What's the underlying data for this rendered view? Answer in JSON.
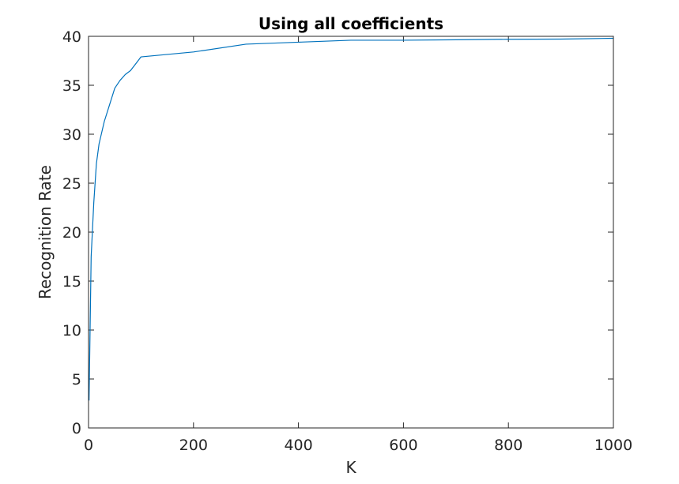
{
  "chart_data": {
    "type": "line",
    "title": "Using all coefficients",
    "xlabel": "K",
    "ylabel": "Recognition Rate",
    "xlim": [
      0,
      1000
    ],
    "ylim": [
      0,
      40
    ],
    "xticks": [
      0,
      200,
      400,
      600,
      800,
      1000
    ],
    "yticks": [
      0,
      5,
      10,
      15,
      20,
      25,
      30,
      35,
      40
    ],
    "grid": false,
    "series": [
      {
        "color": "#0072BD",
        "x": [
          1,
          5,
          10,
          15,
          20,
          30,
          40,
          50,
          60,
          70,
          80,
          90,
          100,
          200,
          300,
          400,
          500,
          600,
          700,
          800,
          900,
          1000
        ],
        "y": [
          2.8,
          17.5,
          23.0,
          27.0,
          29.0,
          31.3,
          33.0,
          34.7,
          35.5,
          36.1,
          36.5,
          37.2,
          37.9,
          38.4,
          39.2,
          39.4,
          39.6,
          39.6,
          39.65,
          39.7,
          39.72,
          39.8
        ]
      }
    ]
  }
}
